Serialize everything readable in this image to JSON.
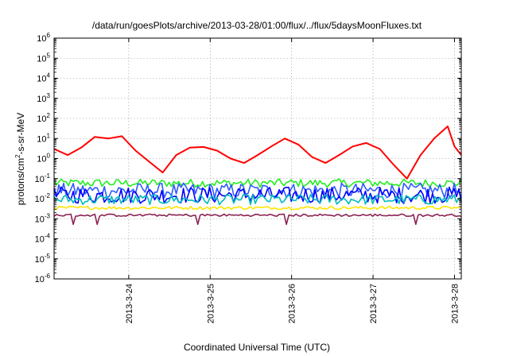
{
  "chart_data": {
    "type": "line",
    "title": "/data/run/goesPlots/archive/2013-03-28/01:00/flux/../flux/5daysMoonFluxes.txt",
    "xlabel": "Coordinated Universal Time (UTC)",
    "ylabel": "protons/cm²-s-sr-MeV",
    "ylim": [
      1e-06,
      1000000.0
    ],
    "yscale": "log",
    "xlim": [
      "2013-03-23T02:00",
      "2013-03-28T02:00"
    ],
    "grid": true,
    "x_ticks": [
      "2013-3-24",
      "2013-3-25",
      "2013-3-26",
      "2013-3-27",
      "2013-3-28"
    ],
    "y_ticks": [
      {
        "base": "10",
        "exp": "6"
      },
      {
        "base": "10",
        "exp": "5"
      },
      {
        "base": "10",
        "exp": "4"
      },
      {
        "base": "10",
        "exp": "3"
      },
      {
        "base": "10",
        "exp": "2"
      },
      {
        "base": "10",
        "exp": "1"
      },
      {
        "base": "10",
        "exp": "0"
      },
      {
        "base": "10",
        "exp": "-1"
      },
      {
        "base": "10",
        "exp": "-2"
      },
      {
        "base": "10",
        "exp": "-3"
      },
      {
        "base": "10",
        "exp": "-4"
      },
      {
        "base": "10",
        "exp": "-5"
      },
      {
        "base": "10",
        "exp": "-6"
      }
    ],
    "series": [
      {
        "color": "#ff0000",
        "points": [
          [
            "2013-03-23T02:00",
            3.0
          ],
          [
            "2013-03-23T06:00",
            1.5
          ],
          [
            "2013-03-23T10:00",
            3.5
          ],
          [
            "2013-03-23T14:00",
            12
          ],
          [
            "2013-03-23T18:00",
            10
          ],
          [
            "2013-03-23T22:00",
            13
          ],
          [
            "2013-03-24T02:00",
            2.5
          ],
          [
            "2013-03-24T06:00",
            0.7
          ],
          [
            "2013-03-24T10:00",
            0.2
          ],
          [
            "2013-03-24T14:00",
            1.5
          ],
          [
            "2013-03-24T18:00",
            3.5
          ],
          [
            "2013-03-24T22:00",
            3.8
          ],
          [
            "2013-03-25T02:00",
            2.5
          ],
          [
            "2013-03-25T06:00",
            1.0
          ],
          [
            "2013-03-25T10:00",
            0.6
          ],
          [
            "2013-03-25T14:00",
            1.5
          ],
          [
            "2013-03-25T18:00",
            4
          ],
          [
            "2013-03-25T22:00",
            10
          ],
          [
            "2013-03-26T02:00",
            5
          ],
          [
            "2013-03-26T06:00",
            1.2
          ],
          [
            "2013-03-26T10:00",
            0.6
          ],
          [
            "2013-03-26T14:00",
            1.5
          ],
          [
            "2013-03-26T18:00",
            4
          ],
          [
            "2013-03-26T22:00",
            6
          ],
          [
            "2013-03-27T02:00",
            3
          ],
          [
            "2013-03-27T06:00",
            0.5
          ],
          [
            "2013-03-27T10:00",
            0.1
          ],
          [
            "2013-03-27T14:00",
            1.5
          ],
          [
            "2013-03-27T18:00",
            10
          ],
          [
            "2013-03-27T22:00",
            40
          ],
          [
            "2013-03-28T00:00",
            4
          ],
          [
            "2013-03-28T02:00",
            1.5
          ]
        ]
      },
      {
        "color": "#22ee22",
        "level": 0.06,
        "spread": 1.6
      },
      {
        "color": "#2f5bff",
        "level": 0.025,
        "spread": 2.4
      },
      {
        "color": "#0000ff",
        "level": 0.015,
        "spread": 2.6
      },
      {
        "color": "#00bcbc",
        "level": 0.009,
        "spread": 1.8
      },
      {
        "color": "#ffe600",
        "level": 0.0035,
        "spread": 1.2
      },
      {
        "color": "#8b2252",
        "level": 0.0015,
        "spread": 1.15
      }
    ]
  }
}
